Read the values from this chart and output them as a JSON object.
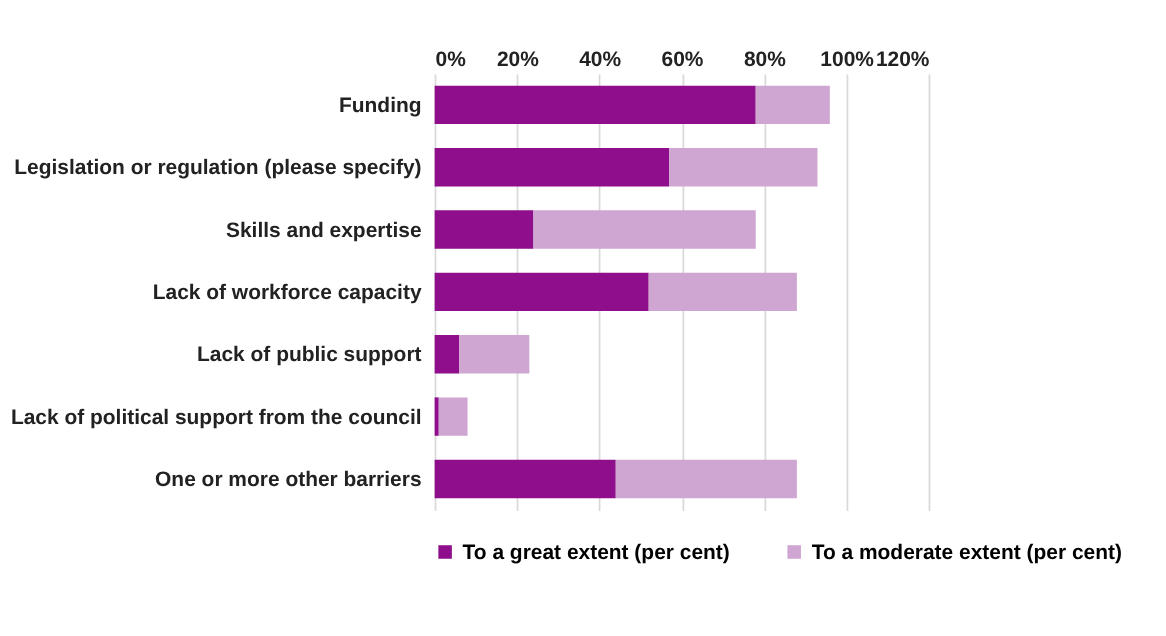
{
  "chart_data": {
    "type": "bar",
    "orientation": "horizontal",
    "stacked": true,
    "categories": [
      "Funding",
      "Legislation or regulation (please specify)",
      "Skills and expertise",
      "Lack of workforce capacity",
      "Lack of public support",
      "Lack of political support from the council",
      "One or more other barriers"
    ],
    "series": [
      {
        "name": "To a great extent (per cent)",
        "color": "#8e0e8b",
        "values": [
          78,
          57,
          24,
          52,
          6,
          1,
          44
        ]
      },
      {
        "name": "To a moderate extent (per cent)",
        "color": "#cfa5d2",
        "values": [
          18,
          36,
          54,
          36,
          17,
          7,
          44
        ]
      }
    ],
    "xlim": [
      0,
      120
    ],
    "xticks": [
      {
        "value": 0,
        "label": "0%"
      },
      {
        "value": 20,
        "label": "20%"
      },
      {
        "value": 40,
        "label": "40%"
      },
      {
        "value": 60,
        "label": "60%"
      },
      {
        "value": 80,
        "label": "80%"
      },
      {
        "value": 100,
        "label": "100%"
      },
      {
        "value": 120,
        "label": "120%"
      }
    ],
    "grid": "x",
    "legend": "bottom"
  }
}
